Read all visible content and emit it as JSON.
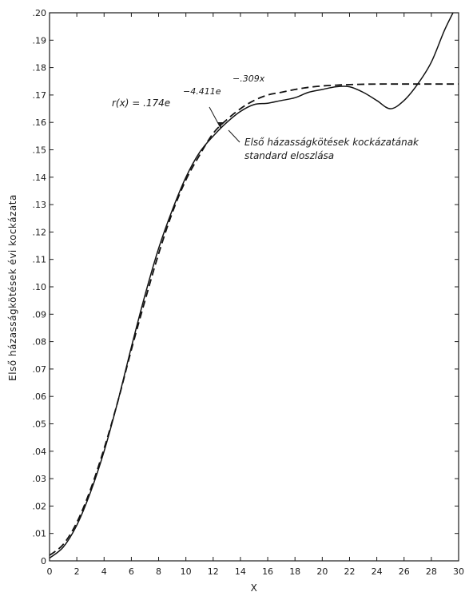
{
  "chart_data": {
    "type": "line",
    "ylabel": "Első házasságkötések évi kockázata",
    "xlabel": "X",
    "xlim": [
      0,
      30
    ],
    "ylim": [
      0,
      0.2
    ],
    "x_ticks": [
      0,
      2,
      4,
      6,
      8,
      10,
      12,
      14,
      16,
      18,
      20,
      22,
      24,
      26,
      28,
      30
    ],
    "x_tick_labels": [
      "0",
      "2",
      "4",
      "6",
      "8",
      "10",
      "12",
      "14",
      "16",
      "18",
      "20",
      "22",
      "24",
      "26",
      "28",
      "30"
    ],
    "y_ticks": [
      0,
      0.01,
      0.02,
      0.03,
      0.04,
      0.05,
      0.06,
      0.07,
      0.08,
      0.09,
      0.1,
      0.11,
      0.12,
      0.13,
      0.14,
      0.15,
      0.16,
      0.17,
      0.18,
      0.19,
      0.2
    ],
    "y_tick_labels": [
      "0",
      ".01",
      ".02",
      ".03",
      ".04",
      ".05",
      ".06",
      ".07",
      ".08",
      ".09",
      ".10",
      ".11",
      ".12",
      ".13",
      ".14",
      ".15",
      ".16",
      ".17",
      ".18",
      ".19",
      ".20"
    ],
    "grid": false,
    "series": [
      {
        "style": "solid",
        "x": [
          0,
          1,
          2,
          3,
          4,
          5,
          6,
          7,
          8,
          9,
          10,
          11,
          12,
          13,
          14,
          15,
          16,
          17,
          18,
          19,
          20,
          21,
          22,
          23,
          24,
          25,
          26,
          27,
          28,
          29,
          30
        ],
        "y": [
          0.001,
          0.005,
          0.013,
          0.025,
          0.04,
          0.058,
          0.078,
          0.097,
          0.114,
          0.128,
          0.14,
          0.149,
          0.155,
          0.16,
          0.164,
          0.1665,
          0.167,
          0.168,
          0.169,
          0.171,
          0.172,
          0.173,
          0.173,
          0.171,
          0.168,
          0.165,
          0.168,
          0.174,
          0.182,
          0.194,
          0.204
        ]
      },
      {
        "style": "dashed",
        "x": [
          0,
          1,
          2,
          3,
          4,
          5,
          6,
          7,
          8,
          9,
          10,
          11,
          12,
          13,
          14,
          15,
          16,
          17,
          18,
          19,
          20,
          21,
          22,
          24,
          26,
          28,
          30
        ],
        "y": [
          0.002,
          0.006,
          0.014,
          0.026,
          0.041,
          0.058,
          0.077,
          0.095,
          0.112,
          0.127,
          0.139,
          0.148,
          0.156,
          0.161,
          0.165,
          0.168,
          0.17,
          0.171,
          0.172,
          0.1728,
          0.1733,
          0.1736,
          0.1738,
          0.174,
          0.174,
          0.174,
          0.174
        ]
      }
    ],
    "annotations": {
      "formula_base": "r(x) = .174e",
      "formula_exp1": "−4.411e",
      "formula_exp2": "−.309x",
      "curve_label_line1": "Első házasságkötések kockázatának",
      "curve_label_line2": "standard eloszlása"
    }
  }
}
